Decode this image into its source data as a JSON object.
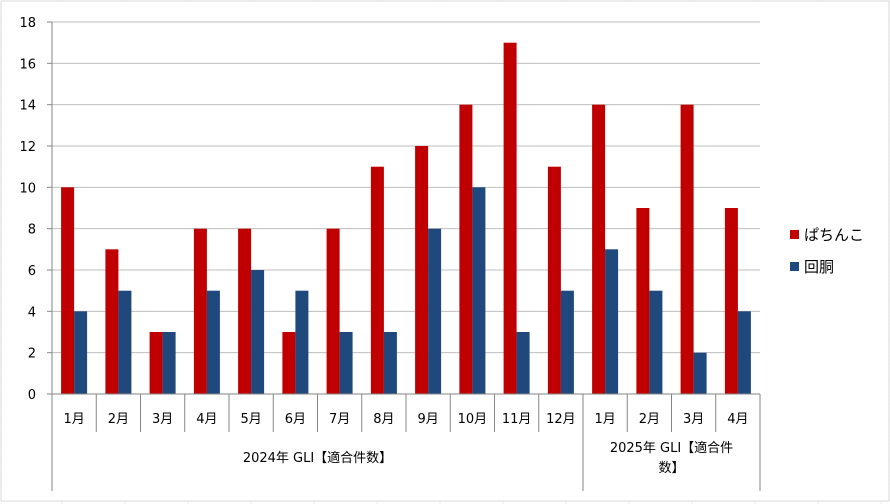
{
  "chart_data": {
    "type": "bar",
    "categories": [
      "1月",
      "2月",
      "3月",
      "4月",
      "5月",
      "6月",
      "7月",
      "8月",
      "9月",
      "10月",
      "11月",
      "12月",
      "1月",
      "2月",
      "3月",
      "4月"
    ],
    "groups": [
      {
        "label_lines": [
          "2024年 GLI【適合件数】"
        ],
        "count": 12
      },
      {
        "label_lines": [
          "2025年 GLI【適合件",
          "数】"
        ],
        "count": 4
      }
    ],
    "series": [
      {
        "name": "ぱちんこ",
        "color": "#C00000",
        "values": [
          10,
          7,
          3,
          8,
          8,
          3,
          8,
          11,
          12,
          14,
          17,
          11,
          14,
          9,
          14,
          9
        ]
      },
      {
        "name": "回胴",
        "color": "#1F497D",
        "values": [
          4,
          5,
          3,
          5,
          6,
          5,
          3,
          3,
          8,
          10,
          3,
          5,
          7,
          5,
          2,
          4
        ]
      }
    ],
    "ylim": [
      0,
      18
    ],
    "yticks": [
      0,
      2,
      4,
      6,
      8,
      10,
      12,
      14,
      16,
      18
    ],
    "grid": true,
    "legend": "right"
  }
}
